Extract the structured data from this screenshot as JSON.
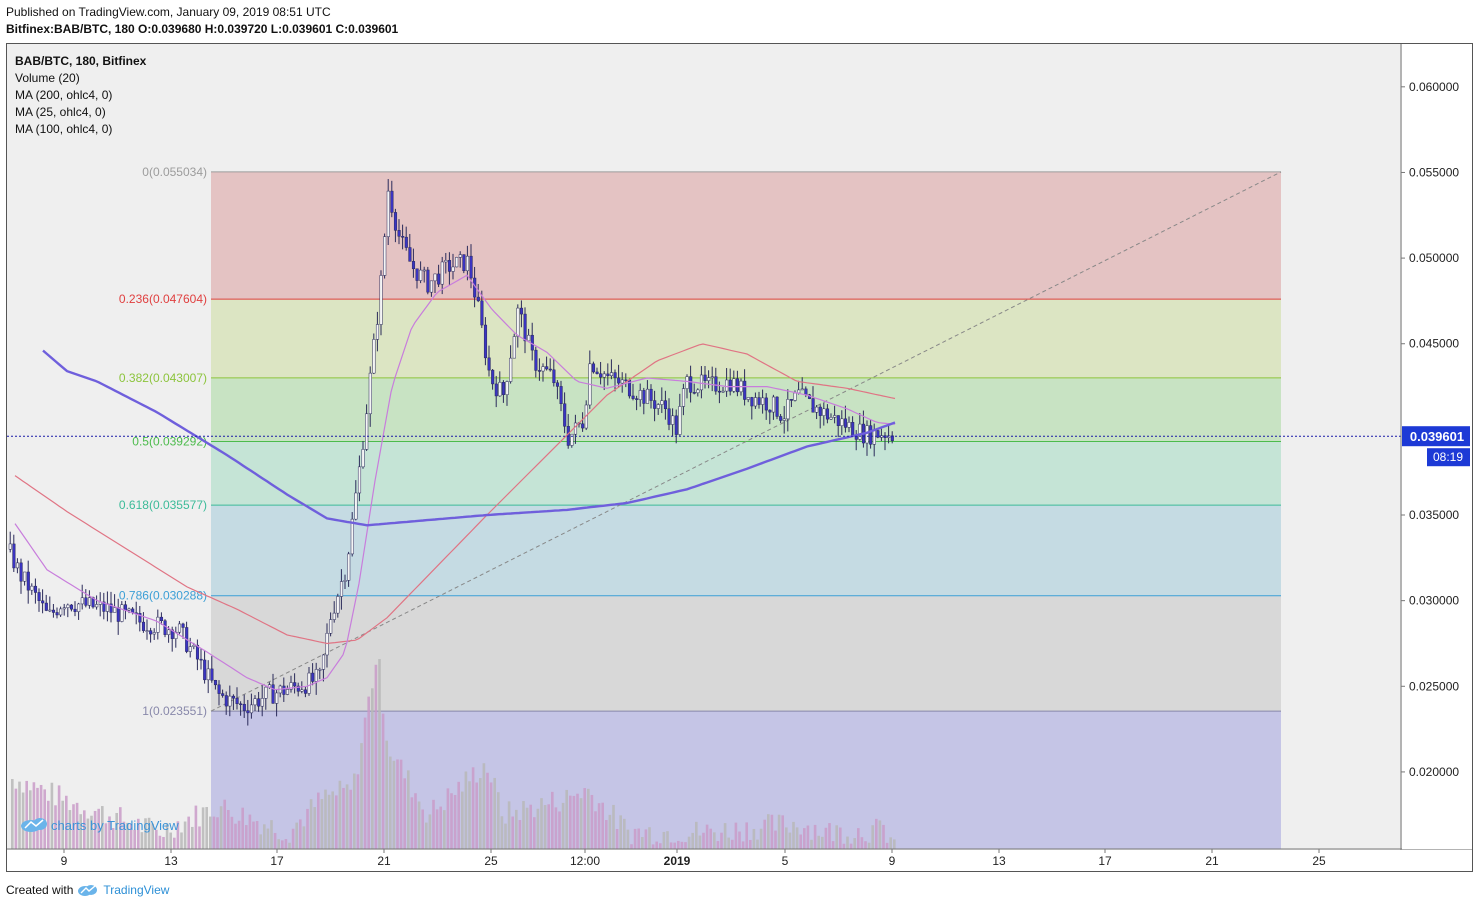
{
  "header": {
    "published": "Published on TradingView.com, January 09, 2019 08:51 UTC",
    "symbol": "Bitfinex:BAB/BTC, 180",
    "ohlc": "O:0.039680 H:0.039720 L:0.039601 C:0.039601"
  },
  "legend": {
    "title": "BAB/BTC, 180, Bitfinex",
    "items": [
      "Volume (20)",
      "MA (200, ohlc4, 0)",
      "MA (25, ohlc4, 0)",
      "MA (100, ohlc4, 0)"
    ]
  },
  "watermark": "charts by TradingView",
  "footer": {
    "created_with": "Created with",
    "brand": "TradingView"
  },
  "price_label": "0.039601",
  "countdown_label": "08:19",
  "colors": {
    "candle_up": "#f5f5f5",
    "candle_down": "#3b34c2",
    "ma200": "#6f5fdc",
    "ma25": "#c87ddc",
    "ma100": "#e07484",
    "price_line": "#1a1aa8",
    "axis_label_bg": "#1d3ad6"
  },
  "chart_data": {
    "type": "candlestick",
    "symbol": "BAB/BTC",
    "exchange": "Bitfinex",
    "interval": "180",
    "ylim": [
      0.0155,
      0.0625
    ],
    "y_ticks": [
      "0.060000",
      "0.055000",
      "0.050000",
      "0.045000",
      "0.035000",
      "0.030000",
      "0.025000",
      "0.020000"
    ],
    "x_tick_labels": [
      "9",
      "13",
      "17",
      "21",
      "25",
      "12:00",
      "2019",
      "5",
      "9",
      "13",
      "17",
      "21",
      "25"
    ],
    "x_tick_positions": [
      57,
      164,
      270,
      377,
      484,
      578,
      670,
      778,
      885,
      992,
      1098,
      1205,
      1312
    ],
    "last_price": 0.039601,
    "fibonacci": {
      "levels": [
        {
          "ratio": "0",
          "price": 0.055034,
          "label": "0(0.055034)",
          "line": "#9c9c9c",
          "fill": "#e4c3c3"
        },
        {
          "ratio": "0.236",
          "price": 0.047604,
          "label": "0.236(0.047604)",
          "line": "#e04040",
          "fill": "#dce5c3"
        },
        {
          "ratio": "0.382",
          "price": 0.043007,
          "label": "0.382(0.043007)",
          "line": "#8cc43c",
          "fill": "#c8e3c3"
        },
        {
          "ratio": "0.5",
          "price": 0.039292,
          "label": "0.5(0.039292)",
          "line": "#4cbb4c",
          "fill": "#c5e4d6"
        },
        {
          "ratio": "0.618",
          "price": 0.035577,
          "label": "0.618(0.035577)",
          "line": "#3cbb99",
          "fill": "#c5dbe3"
        },
        {
          "ratio": "0.786",
          "price": 0.030288,
          "label": "0.786(0.030288)",
          "line": "#3c9fd6",
          "fill": "#d8d8d8"
        },
        {
          "ratio": "1",
          "price": 0.023551,
          "label": "1(0.023551)",
          "line": "#8888aa",
          "fill": "#c5c5e6"
        }
      ],
      "trend_from": {
        "x_day": "Dec 15",
        "price": 0.023551
      },
      "trend_to": {
        "x_day": "Jan 24",
        "price": 0.055034
      }
    },
    "series_knots": {
      "price_path": [
        [
          0,
          0.033
        ],
        [
          12,
          0.0315
        ],
        [
          30,
          0.03
        ],
        [
          40,
          0.029
        ],
        [
          55,
          0.03
        ],
        [
          70,
          0.0298
        ],
        [
          100,
          0.0295
        ],
        [
          130,
          0.0288
        ],
        [
          170,
          0.0283
        ],
        [
          190,
          0.0265
        ],
        [
          210,
          0.0245
        ],
        [
          235,
          0.0238
        ],
        [
          260,
          0.0245
        ],
        [
          300,
          0.0252
        ],
        [
          312,
          0.0255
        ],
        [
          322,
          0.029
        ],
        [
          338,
          0.032
        ],
        [
          352,
          0.038
        ],
        [
          362,
          0.043
        ],
        [
          372,
          0.048
        ],
        [
          380,
          0.054
        ],
        [
          392,
          0.051
        ],
        [
          404,
          0.0495
        ],
        [
          420,
          0.0485
        ],
        [
          440,
          0.0495
        ],
        [
          460,
          0.0498
        ],
        [
          470,
          0.047
        ],
        [
          482,
          0.043
        ],
        [
          495,
          0.042
        ],
        [
          510,
          0.047
        ],
        [
          525,
          0.044
        ],
        [
          545,
          0.043
        ],
        [
          560,
          0.0395
        ],
        [
          575,
          0.0405
        ],
        [
          582,
          0.044
        ],
        [
          600,
          0.043
        ],
        [
          620,
          0.0425
        ],
        [
          640,
          0.0418
        ],
        [
          658,
          0.0412
        ],
        [
          668,
          0.04
        ],
        [
          678,
          0.0428
        ],
        [
          700,
          0.0425
        ],
        [
          722,
          0.0428
        ],
        [
          740,
          0.042
        ],
        [
          762,
          0.0415
        ],
        [
          775,
          0.0408
        ],
        [
          790,
          0.042
        ],
        [
          800,
          0.0415
        ],
        [
          820,
          0.0408
        ],
        [
          840,
          0.0402
        ],
        [
          858,
          0.0397
        ],
        [
          876,
          0.0398
        ],
        [
          888,
          0.0396
        ]
      ],
      "ma200": [
        [
          36,
          0.0446
        ],
        [
          60,
          0.0434
        ],
        [
          90,
          0.0428
        ],
        [
          150,
          0.041
        ],
        [
          220,
          0.0385
        ],
        [
          280,
          0.0362
        ],
        [
          320,
          0.0348
        ],
        [
          360,
          0.0344
        ],
        [
          420,
          0.0347
        ],
        [
          480,
          0.035
        ],
        [
          560,
          0.0353
        ],
        [
          620,
          0.0357
        ],
        [
          680,
          0.0365
        ],
        [
          740,
          0.0377
        ],
        [
          800,
          0.039
        ],
        [
          860,
          0.0398
        ],
        [
          888,
          0.0404
        ]
      ],
      "ma25": [
        [
          8,
          0.0345
        ],
        [
          40,
          0.0318
        ],
        [
          90,
          0.03
        ],
        [
          150,
          0.0288
        ],
        [
          200,
          0.027
        ],
        [
          240,
          0.0255
        ],
        [
          268,
          0.0248
        ],
        [
          300,
          0.025
        ],
        [
          320,
          0.0255
        ],
        [
          338,
          0.027
        ],
        [
          352,
          0.031
        ],
        [
          368,
          0.037
        ],
        [
          385,
          0.0425
        ],
        [
          405,
          0.046
        ],
        [
          430,
          0.048
        ],
        [
          460,
          0.049
        ],
        [
          485,
          0.047
        ],
        [
          510,
          0.0455
        ],
        [
          540,
          0.0445
        ],
        [
          570,
          0.0428
        ],
        [
          600,
          0.0424
        ],
        [
          640,
          0.043
        ],
        [
          680,
          0.0428
        ],
        [
          720,
          0.0425
        ],
        [
          760,
          0.0425
        ],
        [
          800,
          0.042
        ],
        [
          840,
          0.0412
        ],
        [
          870,
          0.0404
        ],
        [
          888,
          0.0403
        ]
      ],
      "ma100": [
        [
          8,
          0.0373
        ],
        [
          60,
          0.0352
        ],
        [
          120,
          0.033
        ],
        [
          180,
          0.0308
        ],
        [
          230,
          0.0295
        ],
        [
          280,
          0.028
        ],
        [
          320,
          0.0275
        ],
        [
          350,
          0.0277
        ],
        [
          380,
          0.029
        ],
        [
          430,
          0.032
        ],
        [
          480,
          0.035
        ],
        [
          540,
          0.0385
        ],
        [
          600,
          0.042
        ],
        [
          650,
          0.044
        ],
        [
          695,
          0.045
        ],
        [
          740,
          0.0444
        ],
        [
          790,
          0.0428
        ],
        [
          840,
          0.0424
        ],
        [
          888,
          0.0418
        ]
      ],
      "volume": [
        [
          8,
          0.0196
        ],
        [
          60,
          0.0183
        ],
        [
          150,
          0.0165
        ],
        [
          210,
          0.018
        ],
        [
          280,
          0.0165
        ],
        [
          315,
          0.0185
        ],
        [
          345,
          0.019
        ],
        [
          369,
          0.027
        ],
        [
          380,
          0.0215
        ],
        [
          420,
          0.0175
        ],
        [
          478,
          0.0205
        ],
        [
          495,
          0.0175
        ],
        [
          560,
          0.0185
        ],
        [
          578,
          0.019
        ],
        [
          620,
          0.0165
        ],
        [
          700,
          0.0165
        ],
        [
          790,
          0.017
        ],
        [
          820,
          0.0165
        ],
        [
          876,
          0.0166
        ],
        [
          888,
          0.0158
        ]
      ]
    }
  }
}
